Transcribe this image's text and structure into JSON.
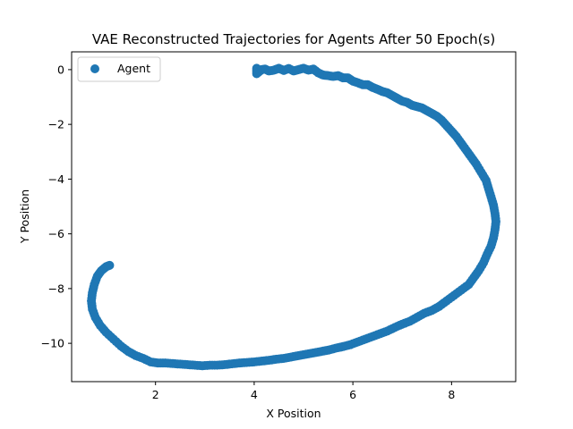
{
  "chart_data": {
    "type": "scatter",
    "title": "VAE Reconstructed Trajectories for Agents After 50 Epoch(s)",
    "xlabel": "X Position",
    "ylabel": "Y Position",
    "xlim": [
      0.3,
      9.3
    ],
    "ylim": [
      -11.4,
      0.65
    ],
    "xticks": [
      2,
      4,
      6,
      8
    ],
    "xtick_labels": [
      "2",
      "4",
      "6",
      "8"
    ],
    "yticks": [
      0,
      -2,
      -4,
      -6,
      -8,
      -10
    ],
    "ytick_labels": [
      "0",
      "−2",
      "−4",
      "−6",
      "−8",
      "−10"
    ],
    "grid": false,
    "legend_position": "upper-left",
    "color": "#1f77b4",
    "series": [
      {
        "name": "Agent",
        "points": [
          [
            4.05,
            0.05
          ],
          [
            4.05,
            -0.15
          ],
          [
            4.15,
            0.0
          ],
          [
            4.22,
            0.02
          ],
          [
            4.3,
            -0.05
          ],
          [
            4.4,
            -0.02
          ],
          [
            4.5,
            0.05
          ],
          [
            4.6,
            -0.03
          ],
          [
            4.7,
            0.04
          ],
          [
            4.8,
            -0.05
          ],
          [
            4.9,
            0.0
          ],
          [
            5.0,
            0.05
          ],
          [
            5.1,
            -0.02
          ],
          [
            5.2,
            0.02
          ],
          [
            5.3,
            -0.12
          ],
          [
            5.4,
            -0.2
          ],
          [
            5.5,
            -0.22
          ],
          [
            5.6,
            -0.25
          ],
          [
            5.7,
            -0.22
          ],
          [
            5.8,
            -0.3
          ],
          [
            5.9,
            -0.3
          ],
          [
            6.0,
            -0.42
          ],
          [
            6.1,
            -0.48
          ],
          [
            6.2,
            -0.55
          ],
          [
            6.3,
            -0.55
          ],
          [
            6.4,
            -0.65
          ],
          [
            6.5,
            -0.72
          ],
          [
            6.6,
            -0.8
          ],
          [
            6.7,
            -0.85
          ],
          [
            6.8,
            -0.95
          ],
          [
            6.9,
            -1.05
          ],
          [
            7.0,
            -1.15
          ],
          [
            7.1,
            -1.2
          ],
          [
            7.2,
            -1.3
          ],
          [
            7.3,
            -1.35
          ],
          [
            7.4,
            -1.4
          ],
          [
            7.5,
            -1.5
          ],
          [
            7.6,
            -1.6
          ],
          [
            7.7,
            -1.7
          ],
          [
            7.8,
            -1.85
          ],
          [
            7.9,
            -2.05
          ],
          [
            8.0,
            -2.25
          ],
          [
            8.1,
            -2.45
          ],
          [
            8.2,
            -2.7
          ],
          [
            8.3,
            -2.95
          ],
          [
            8.4,
            -3.2
          ],
          [
            8.5,
            -3.45
          ],
          [
            8.6,
            -3.75
          ],
          [
            8.7,
            -4.05
          ],
          [
            8.75,
            -4.35
          ],
          [
            8.8,
            -4.65
          ],
          [
            8.85,
            -4.95
          ],
          [
            8.88,
            -5.25
          ],
          [
            8.9,
            -5.55
          ],
          [
            8.88,
            -5.85
          ],
          [
            8.85,
            -6.15
          ],
          [
            8.8,
            -6.45
          ],
          [
            8.72,
            -6.75
          ],
          [
            8.65,
            -7.05
          ],
          [
            8.55,
            -7.35
          ],
          [
            8.45,
            -7.6
          ],
          [
            8.35,
            -7.85
          ],
          [
            8.2,
            -8.05
          ],
          [
            8.05,
            -8.25
          ],
          [
            7.9,
            -8.45
          ],
          [
            7.75,
            -8.65
          ],
          [
            7.6,
            -8.8
          ],
          [
            7.45,
            -8.9
          ],
          [
            7.3,
            -9.05
          ],
          [
            7.15,
            -9.2
          ],
          [
            7.0,
            -9.3
          ],
          [
            6.85,
            -9.42
          ],
          [
            6.7,
            -9.55
          ],
          [
            6.55,
            -9.65
          ],
          [
            6.4,
            -9.75
          ],
          [
            6.25,
            -9.85
          ],
          [
            6.1,
            -9.95
          ],
          [
            5.95,
            -10.05
          ],
          [
            5.8,
            -10.12
          ],
          [
            5.65,
            -10.18
          ],
          [
            5.5,
            -10.25
          ],
          [
            5.35,
            -10.3
          ],
          [
            5.2,
            -10.35
          ],
          [
            5.05,
            -10.4
          ],
          [
            4.9,
            -10.45
          ],
          [
            4.75,
            -10.5
          ],
          [
            4.6,
            -10.55
          ],
          [
            4.45,
            -10.58
          ],
          [
            4.3,
            -10.62
          ],
          [
            4.15,
            -10.65
          ],
          [
            4.0,
            -10.68
          ],
          [
            3.85,
            -10.7
          ],
          [
            3.7,
            -10.72
          ],
          [
            3.55,
            -10.75
          ],
          [
            3.4,
            -10.78
          ],
          [
            3.25,
            -10.8
          ],
          [
            3.1,
            -10.8
          ],
          [
            2.95,
            -10.82
          ],
          [
            2.8,
            -10.8
          ],
          [
            2.65,
            -10.78
          ],
          [
            2.5,
            -10.76
          ],
          [
            2.35,
            -10.74
          ],
          [
            2.2,
            -10.72
          ],
          [
            2.05,
            -10.72
          ],
          [
            1.9,
            -10.68
          ],
          [
            1.75,
            -10.55
          ],
          [
            1.6,
            -10.45
          ],
          [
            1.45,
            -10.3
          ],
          [
            1.3,
            -10.1
          ],
          [
            1.15,
            -9.85
          ],
          [
            1.0,
            -9.6
          ],
          [
            0.88,
            -9.35
          ],
          [
            0.78,
            -9.05
          ],
          [
            0.72,
            -8.75
          ],
          [
            0.7,
            -8.45
          ],
          [
            0.72,
            -8.15
          ],
          [
            0.76,
            -7.85
          ],
          [
            0.82,
            -7.55
          ],
          [
            0.9,
            -7.35
          ],
          [
            1.0,
            -7.2
          ],
          [
            1.07,
            -7.15
          ]
        ]
      }
    ]
  }
}
